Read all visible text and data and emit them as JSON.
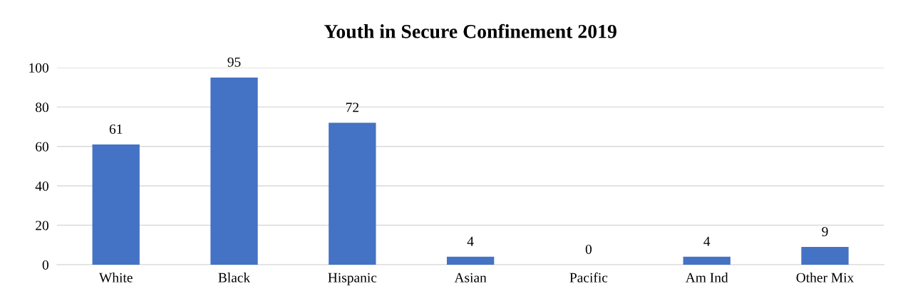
{
  "chart_data": {
    "type": "bar",
    "title": "Youth in Secure Confinement 2019",
    "categories": [
      "White",
      "Black",
      "Hispanic",
      "Asian",
      "Pacific",
      "Am Ind",
      "Other Mix"
    ],
    "values": [
      61,
      95,
      72,
      4,
      0,
      4,
      9
    ],
    "color": "#4472c4",
    "ylim": [
      0,
      100
    ],
    "yticks": [
      0,
      20,
      40,
      60,
      80,
      100
    ],
    "grid": "y",
    "data_labels": true
  }
}
